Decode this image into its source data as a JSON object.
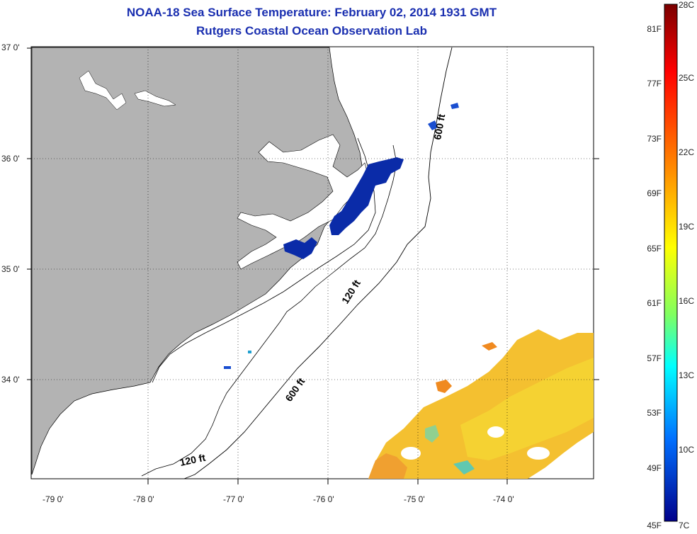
{
  "title": {
    "line1": "NOAA-18 Sea Surface Temperature:  February 02, 2014 1931 GMT",
    "line2": "Rutgers Coastal Ocean Observation Lab"
  },
  "latitude_labels": [
    "37 0'",
    "36 0'",
    "35 0'",
    "34 0'"
  ],
  "longitude_labels": [
    "-79 0'",
    "-78 0'",
    "-77 0'",
    "-76 0'",
    "-75 0'",
    "-74 0'"
  ],
  "contour_labels": {
    "c600_north": "600 ft",
    "c600_south": "600 ft",
    "c120_north": "120 ft",
    "c120_south": "120 ft"
  },
  "colorbar": {
    "fahrenheit": [
      "81F",
      "77F",
      "73F",
      "69F",
      "65F",
      "61F",
      "57F",
      "53F",
      "49F",
      "45F"
    ],
    "celsius": [
      "28C",
      "25C",
      "22C",
      "19C",
      "16C",
      "13C",
      "10C",
      "7C"
    ],
    "colors": [
      "#8b0000",
      "#ff0000",
      "#ff8c00",
      "#ffff00",
      "#00ffff",
      "#0080ff",
      "#0000aa"
    ]
  },
  "colors": {
    "land": "#b3b3b3",
    "title": "#1a2fb0"
  }
}
